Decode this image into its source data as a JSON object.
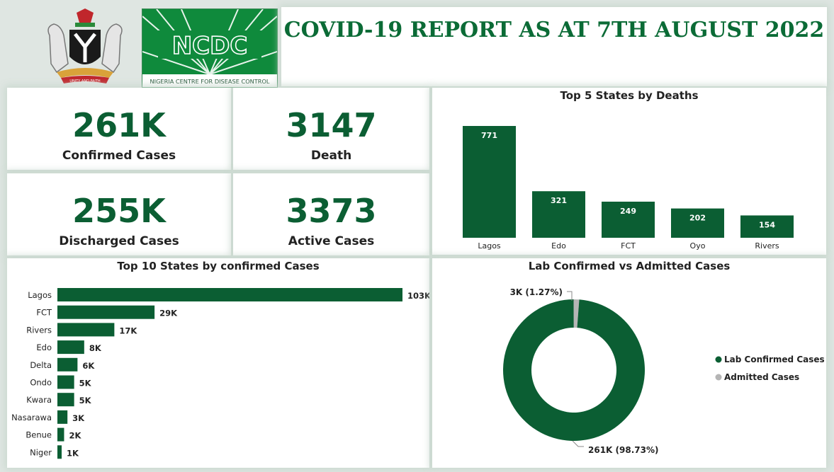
{
  "header": {
    "title": "COVID-19 REPORT AS AT 7TH AUGUST 2022",
    "logo_text": "NCDC",
    "logo_subtitle": "NIGERIA CENTRE FOR DISEASE CONTROL",
    "crest_motto": "UNITY AND FAITH"
  },
  "kpis": {
    "confirmed": {
      "value": "261K",
      "label": "Confirmed Cases"
    },
    "death": {
      "value": "3147",
      "label": "Death"
    },
    "discharged": {
      "value": "255K",
      "label": "Discharged Cases"
    },
    "active": {
      "value": "3373",
      "label": "Active Cases"
    }
  },
  "colors": {
    "primary": "#0b5e33",
    "secondary": "#b5b5b5",
    "title": "#0b6b36"
  },
  "chart_data": [
    {
      "type": "bar",
      "orientation": "vertical",
      "title": "Top 5 States by Deaths",
      "categories": [
        "Lagos",
        "Edo",
        "FCT",
        "Oyo",
        "Rivers"
      ],
      "values": [
        771,
        321,
        249,
        202,
        154
      ],
      "data_labels": [
        "771",
        "321",
        "249",
        "202",
        "154"
      ]
    },
    {
      "type": "bar",
      "orientation": "horizontal",
      "title": "Top 10 States by confirmed Cases",
      "categories": [
        "Lagos",
        "FCT",
        "Rivers",
        "Edo",
        "Delta",
        "Ondo",
        "Kwara",
        "Nasarawa",
        "Benue",
        "Niger"
      ],
      "values": [
        103,
        29,
        17,
        8,
        6,
        5,
        5,
        3,
        2,
        1
      ],
      "data_labels": [
        "103K",
        "29K",
        "17K",
        "8K",
        "6K",
        "5K",
        "5K",
        "3K",
        "2K",
        "1K"
      ]
    },
    {
      "type": "pie",
      "donut": true,
      "title": "Lab Confirmed vs Admitted Cases",
      "legend_position": "right",
      "slices": [
        {
          "name": "Lab Confirmed Cases",
          "value": 98.73,
          "label": "261K (98.73%)",
          "color": "#0b5e33"
        },
        {
          "name": "Admitted Cases",
          "value": 1.27,
          "label": "3K (1.27%)",
          "color": "#b5b5b5"
        }
      ]
    }
  ]
}
